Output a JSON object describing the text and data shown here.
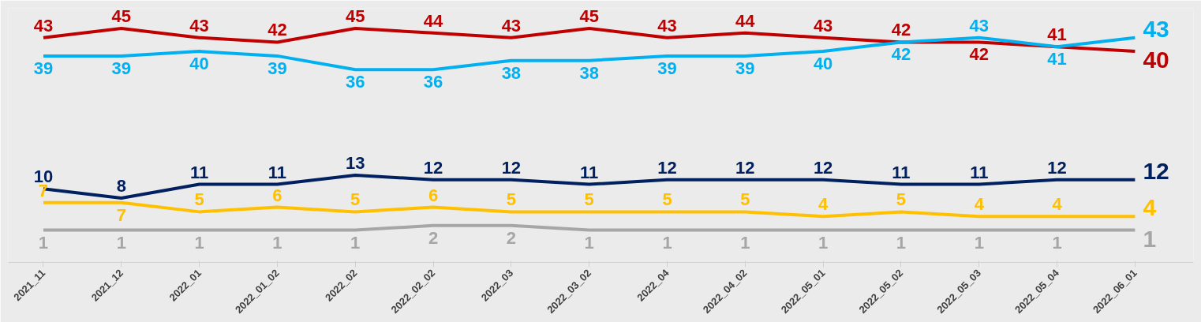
{
  "chart_data": {
    "type": "line",
    "categories": [
      "2021_11",
      "2021_12",
      "2022_01",
      "2022_01_02",
      "2022_02",
      "2022_02_02",
      "2022_03",
      "2022_03_02",
      "2022_04",
      "2022_04_02",
      "2022_05_01",
      "2022_05_02",
      "2022_05_03",
      "2022_05_04",
      "2022_06_01"
    ],
    "series": [
      {
        "color": "#c00000",
        "values": [
          43,
          45,
          43,
          42,
          45,
          44,
          43,
          45,
          43,
          44,
          43,
          42,
          42,
          41,
          40
        ]
      },
      {
        "color": "#00b0f0",
        "values": [
          39,
          39,
          40,
          39,
          36,
          36,
          38,
          38,
          39,
          39,
          40,
          42,
          43,
          41,
          43
        ]
      },
      {
        "color": "#002060",
        "values": [
          10,
          8,
          11,
          11,
          13,
          12,
          12,
          11,
          12,
          12,
          12,
          11,
          11,
          12,
          12
        ]
      },
      {
        "color": "#ffc000",
        "values": [
          7,
          7,
          5,
          6,
          5,
          6,
          5,
          5,
          5,
          5,
          4,
          5,
          4,
          4,
          4
        ]
      },
      {
        "color": "#a6a6a6",
        "values": [
          1,
          1,
          1,
          1,
          1,
          2,
          2,
          1,
          1,
          1,
          1,
          1,
          1,
          1,
          1
        ]
      }
    ],
    "data_labels": true,
    "line_style": "solid"
  }
}
